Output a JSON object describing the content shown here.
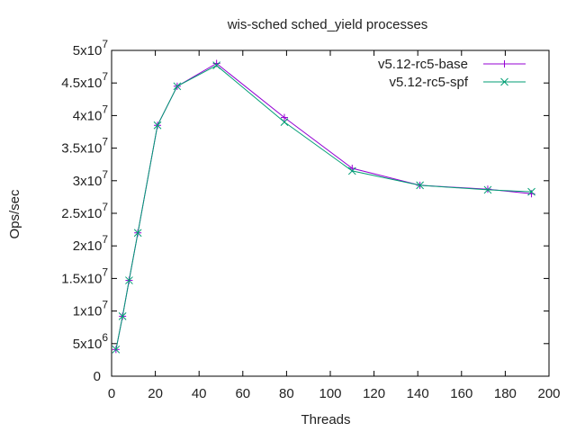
{
  "chart_data": {
    "type": "line",
    "title": "wis-sched sched_yield processes",
    "xlabel": "Threads",
    "ylabel": "Ops/sec",
    "xlim": [
      0,
      200
    ],
    "ylim": [
      0,
      50000000
    ],
    "x_ticks": [
      0,
      20,
      40,
      60,
      80,
      100,
      120,
      140,
      160,
      180,
      200
    ],
    "y_ticks": [
      {
        "value": 0,
        "mant": "0",
        "exp": ""
      },
      {
        "value": 5000000,
        "mant": "5x10",
        "exp": "6"
      },
      {
        "value": 10000000,
        "mant": "1x10",
        "exp": "7"
      },
      {
        "value": 15000000,
        "mant": "1.5x10",
        "exp": "7"
      },
      {
        "value": 20000000,
        "mant": "2x10",
        "exp": "7"
      },
      {
        "value": 25000000,
        "mant": "2.5x10",
        "exp": "7"
      },
      {
        "value": 30000000,
        "mant": "3x10",
        "exp": "7"
      },
      {
        "value": 35000000,
        "mant": "3.5x10",
        "exp": "7"
      },
      {
        "value": 40000000,
        "mant": "4x10",
        "exp": "7"
      },
      {
        "value": 45000000,
        "mant": "4.5x10",
        "exp": "7"
      },
      {
        "value": 50000000,
        "mant": "5x10",
        "exp": "7"
      }
    ],
    "grid": false,
    "legend_position": "top-right",
    "x": [
      2,
      5,
      8,
      12,
      21,
      30,
      48,
      79,
      110,
      141,
      172,
      192
    ],
    "series": [
      {
        "name": "v5.12-rc5-base",
        "color": "#9400d3",
        "marker": "plus",
        "values": [
          4100000,
          9200000,
          14700000,
          22000000,
          38500000,
          44500000,
          48000000,
          39700000,
          31900000,
          29300000,
          28700000,
          28000000
        ]
      },
      {
        "name": "v5.12-rc5-spf",
        "color": "#009e73",
        "marker": "cross",
        "values": [
          4100000,
          9200000,
          14700000,
          22000000,
          38500000,
          44500000,
          47700000,
          39000000,
          31500000,
          29300000,
          28600000,
          28300000
        ]
      }
    ]
  }
}
